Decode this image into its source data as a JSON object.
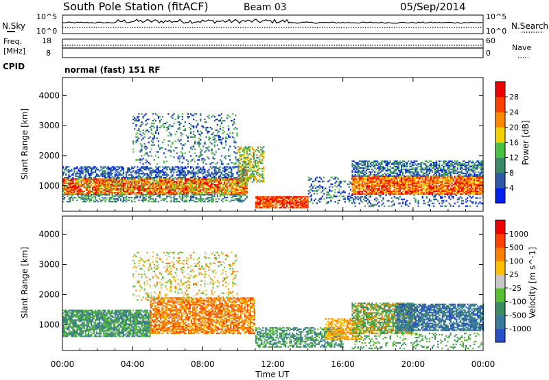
{
  "header": {
    "station": "South Pole Station (fitACF)",
    "beam": "Beam 03",
    "date": "05/Sep/2014",
    "cpid_label": "CPID",
    "program": "normal (fast) 151 RF"
  },
  "noise_panel": {
    "left_label": "N.Sky",
    "right_label": "N.Search",
    "y_ticks_left": [
      "10^5",
      "10^0"
    ],
    "y_ticks_right": [
      "10^5",
      "10^0"
    ]
  },
  "freq_panel": {
    "left_label": "Freq.",
    "unit": "[MHz]",
    "y_ticks_left": [
      "18",
      "8"
    ],
    "right_label": "Nave",
    "y_ticks_right": [
      "60",
      "0"
    ]
  },
  "colors": {
    "axis": "#000000",
    "power_scale": [
      "#0020f0",
      "#2e5aa8",
      "#3a8a6a",
      "#4cc040",
      "#f0d000",
      "#ff8800",
      "#ff4000",
      "#ee0000"
    ],
    "velocity_scale": [
      "#2850c8",
      "#3a7a9a",
      "#3c8c64",
      "#58c030",
      "#c8c8c8",
      "#ffc000",
      "#ff8000",
      "#ff4000",
      "#ee0000"
    ]
  },
  "chart_data": [
    {
      "type": "heatmap",
      "name": "power",
      "xlabel": "",
      "ylabel": "Slant Range [km]",
      "x_ticks": [
        "00:00",
        "04:00",
        "08:00",
        "12:00",
        "16:00",
        "20:00",
        "00:00"
      ],
      "y_ticks": [
        "1000",
        "2000",
        "3000",
        "4000"
      ],
      "ylim": [
        150,
        4600
      ],
      "xlim_hours": [
        0,
        24
      ],
      "colorbar": {
        "label": "Power [dB]",
        "ticks": [
          "4",
          "8",
          "12",
          "16",
          "20",
          "24",
          "28"
        ]
      }
    },
    {
      "type": "heatmap",
      "name": "velocity",
      "xlabel": "Time UT",
      "ylabel": "Slant Range [km]",
      "x_ticks": [
        "00:00",
        "04:00",
        "08:00",
        "12:00",
        "16:00",
        "20:00",
        "00:00"
      ],
      "y_ticks": [
        "1000",
        "2000",
        "3000",
        "4000"
      ],
      "ylim": [
        150,
        4600
      ],
      "xlim_hours": [
        0,
        24
      ],
      "colorbar": {
        "label": "Velocity [m s^-1]",
        "ticks": [
          "1000",
          "500",
          "100",
          "25",
          "-25",
          "-100",
          "-500",
          "-1000"
        ]
      }
    }
  ]
}
